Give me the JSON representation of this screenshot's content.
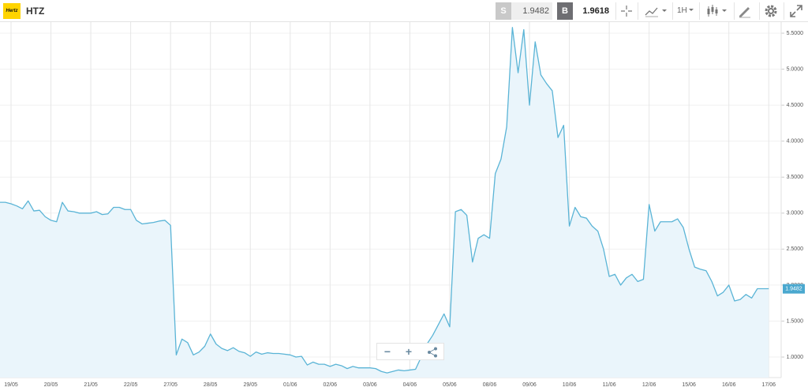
{
  "toolbar": {
    "logo": "Hertz",
    "symbol": "HTZ",
    "sell": {
      "label": "S",
      "price": "1.9482"
    },
    "buy": {
      "label": "B",
      "price": "1.9618"
    },
    "interval": "1H"
  },
  "zoom_controls": [
    "−",
    "+"
  ],
  "chart_data": {
    "type": "line",
    "color": "#5ab4d6",
    "fill": "#eaf5fb",
    "grid": true,
    "categories": [
      null,
      null,
      "19/05",
      null,
      null,
      null,
      null,
      null,
      null,
      "20/05",
      null,
      null,
      null,
      null,
      null,
      null,
      "21/05",
      null,
      null,
      null,
      null,
      null,
      null,
      "22/05",
      null,
      null,
      null,
      null,
      null,
      null,
      "27/05",
      null,
      null,
      null,
      null,
      null,
      null,
      "28/05",
      null,
      null,
      null,
      null,
      null,
      null,
      "29/05",
      null,
      null,
      null,
      null,
      null,
      null,
      "01/06",
      null,
      null,
      null,
      null,
      null,
      null,
      "02/06",
      null,
      null,
      null,
      null,
      null,
      null,
      "03/06",
      null,
      null,
      null,
      null,
      null,
      null,
      "04/06",
      null,
      null,
      null,
      null,
      null,
      null,
      "05/06",
      null,
      null,
      null,
      null,
      null,
      null,
      "08/06",
      null,
      null,
      null,
      null,
      null,
      null,
      "09/06",
      null,
      null,
      null,
      null,
      null,
      null,
      "10/06",
      null,
      null,
      null,
      null,
      null,
      null,
      "11/06",
      null,
      null,
      null,
      null,
      null,
      null,
      "12/06",
      null,
      null,
      null,
      null,
      null,
      null,
      "15/06",
      null,
      null,
      null,
      null,
      null,
      null,
      "16/06",
      null,
      null,
      null,
      null,
      null,
      null,
      "17/06"
    ],
    "values": [
      3.15,
      3.15,
      3.13,
      3.1,
      3.06,
      3.17,
      3.03,
      3.04,
      2.95,
      2.9,
      2.88,
      3.15,
      3.03,
      3.02,
      3.0,
      3.0,
      3.0,
      3.02,
      2.98,
      2.99,
      3.08,
      3.08,
      3.05,
      3.05,
      2.9,
      2.85,
      2.86,
      2.87,
      2.89,
      2.9,
      2.83,
      1.03,
      1.25,
      1.2,
      1.03,
      1.07,
      1.15,
      1.32,
      1.18,
      1.12,
      1.09,
      1.13,
      1.08,
      1.06,
      1.01,
      1.07,
      1.04,
      1.06,
      1.05,
      1.05,
      1.04,
      1.03,
      1.0,
      1.01,
      0.89,
      0.93,
      0.9,
      0.9,
      0.87,
      0.9,
      0.88,
      0.84,
      0.87,
      0.85,
      0.85,
      0.85,
      0.84,
      0.8,
      0.78,
      0.8,
      0.82,
      0.81,
      0.82,
      0.83,
      1.0,
      1.18,
      1.3,
      1.45,
      1.6,
      1.42,
      3.02,
      3.05,
      2.97,
      2.32,
      2.65,
      2.7,
      2.65,
      3.55,
      3.75,
      4.2,
      5.58,
      4.95,
      5.55,
      4.5,
      5.38,
      4.92,
      4.8,
      4.7,
      4.05,
      4.22,
      2.82,
      3.08,
      2.95,
      2.93,
      2.82,
      2.75,
      2.5,
      2.12,
      2.15,
      2.0,
      2.1,
      2.15,
      2.05,
      2.08,
      3.12,
      2.75,
      2.88,
      2.88,
      2.88,
      2.92,
      2.8,
      2.5,
      2.25,
      2.22,
      2.2,
      2.05,
      1.85,
      1.9,
      2.0,
      1.78,
      1.8,
      1.87,
      1.82,
      1.95,
      1.95,
      1.95
    ],
    "ylim": [
      0.715,
      5.654
    ],
    "yticks": [
      {
        "value": 1.0,
        "label": "1.0000"
      },
      {
        "value": 1.5,
        "label": "1.5000"
      },
      {
        "value": 2.0,
        "label": "2.0000"
      },
      {
        "value": 2.5,
        "label": "2.5000"
      },
      {
        "value": 3.0,
        "label": "3.0000"
      },
      {
        "value": 3.5,
        "label": "3.5000"
      },
      {
        "value": 4.0,
        "label": "4.0000"
      },
      {
        "value": 4.5,
        "label": "4.5000"
      },
      {
        "value": 5.0,
        "label": "5.0000"
      },
      {
        "value": 5.5,
        "label": "5.5000"
      }
    ],
    "last_price": 1.9482,
    "last_price_color": "#4aa8cf"
  }
}
